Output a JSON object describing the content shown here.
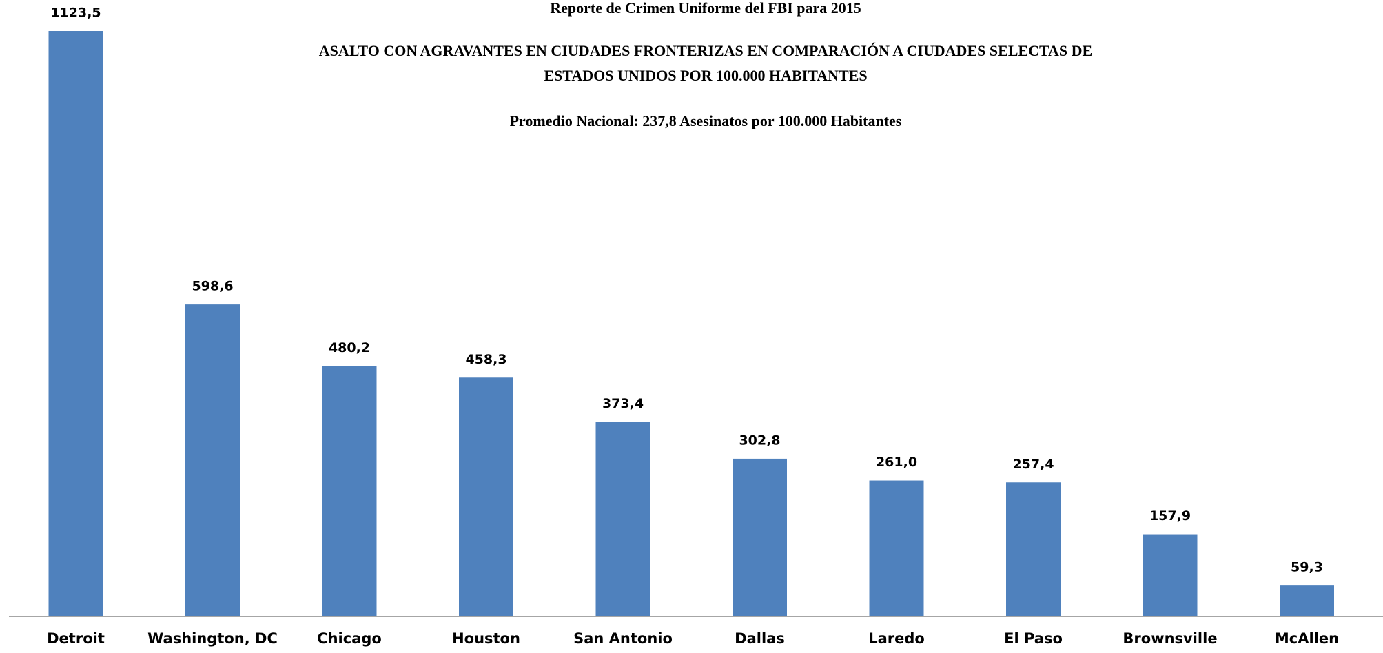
{
  "chart_data": {
    "type": "bar",
    "title": "Reporte de Crimen Uniforme del FBI para 2015",
    "subtitle": [
      "ASALTO CON AGRAVANTES  EN CIUDADES  FRONTERIZAS  EN COMPARACIÓN  A CIUDADES  SELECTAS DE",
      "ESTADOS UNIDOS POR 100.000 HABITANTES"
    ],
    "annotation": "Promedio Nacional: 237,8 Asesinatos por 100.000 Habitantes",
    "categories": [
      "Detroit",
      "Washington, DC",
      "Chicago",
      "Houston",
      "San Antonio",
      "Dallas",
      "Laredo",
      "El Paso",
      "Brownsville",
      "McAllen"
    ],
    "values": [
      1123.5,
      598.6,
      480.2,
      458.3,
      373.4,
      302.8,
      261.0,
      257.4,
      157.9,
      59.3
    ],
    "value_labels": [
      "1123,5",
      "598,6",
      "480,2",
      "458,3",
      "373,4",
      "302,8",
      "261,0",
      "257,4",
      "157,9",
      "59,3"
    ],
    "color": "#4f81bd"
  }
}
